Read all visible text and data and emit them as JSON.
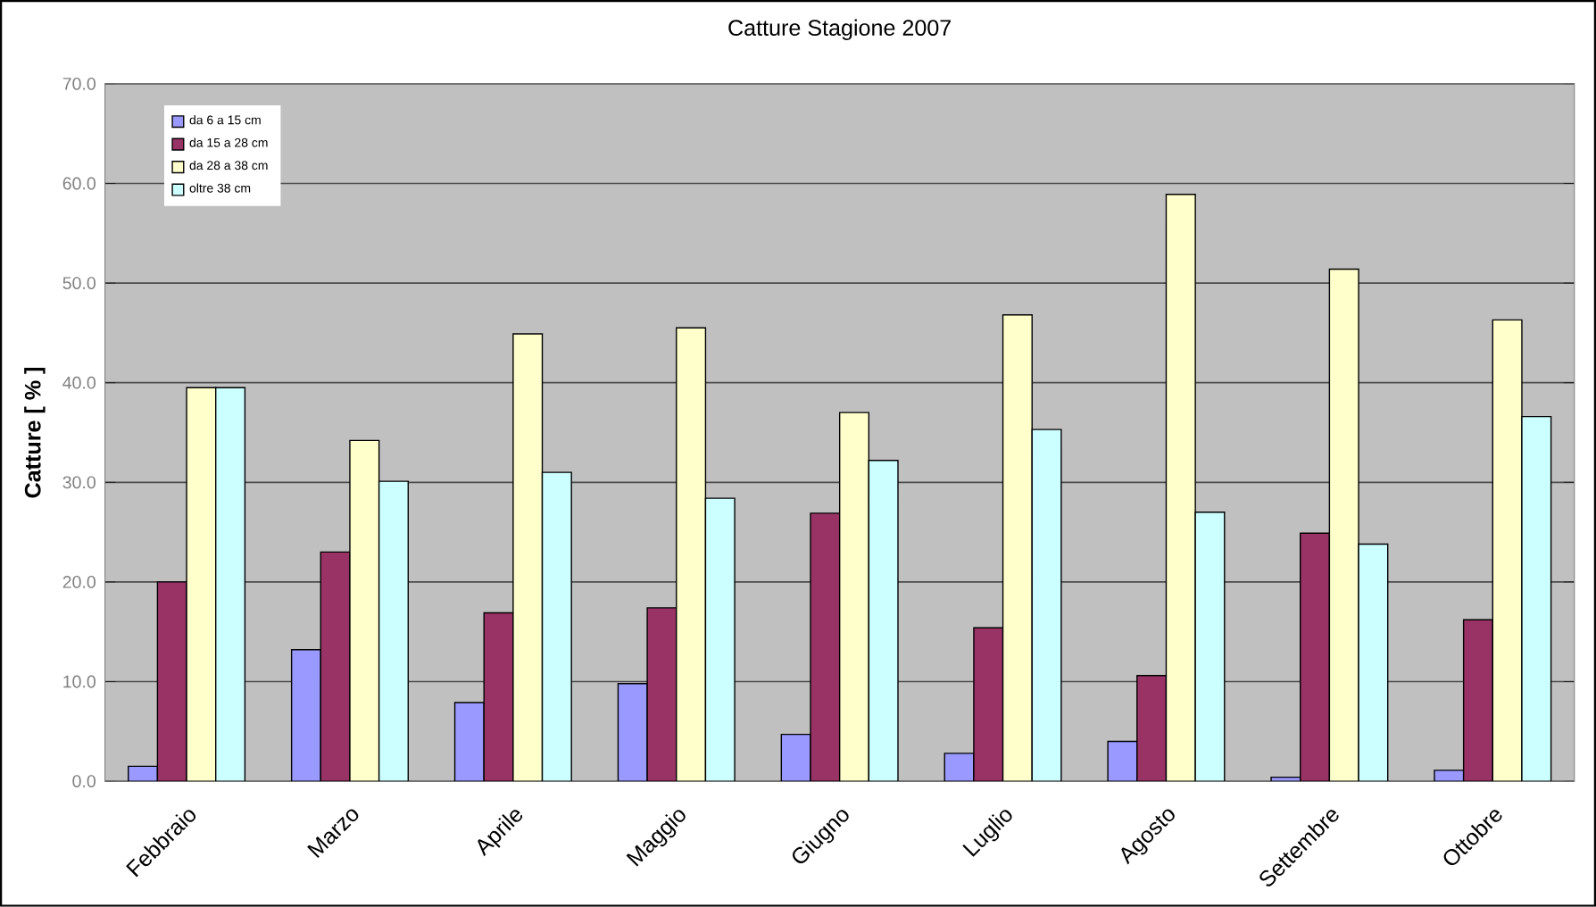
{
  "chart_data": {
    "type": "bar",
    "title": "Catture Stagione 2007",
    "ylabel": "Catture  [ % ]",
    "categories": [
      "Febbraio",
      "Marzo",
      "Aprile",
      "Maggio",
      "Giugno",
      "Luglio",
      "Agosto",
      "Settembre",
      "Ottobre"
    ],
    "series": [
      {
        "name": "da 6 a 15 cm",
        "color": "#9999ff",
        "values": [
          1.5,
          13.2,
          7.9,
          9.8,
          4.7,
          2.8,
          4.0,
          0.4,
          1.1
        ]
      },
      {
        "name": "da 15 a 28 cm",
        "color": "#993366",
        "values": [
          20.0,
          23.0,
          16.9,
          17.4,
          26.9,
          15.4,
          10.6,
          24.9,
          16.2
        ]
      },
      {
        "name": "da 28 a 38 cm",
        "color": "#ffffcc",
        "values": [
          39.5,
          34.2,
          44.9,
          45.5,
          37.0,
          46.8,
          58.9,
          51.4,
          46.3
        ]
      },
      {
        "name": "oltre 38 cm",
        "color": "#ccffff",
        "values": [
          39.5,
          30.1,
          31.0,
          28.4,
          32.2,
          35.3,
          27.0,
          23.8,
          36.6
        ]
      }
    ],
    "ylim": [
      0,
      70
    ],
    "yticks": [
      {
        "value": 0,
        "label": "0.0"
      },
      {
        "value": 10,
        "label": "10.0"
      },
      {
        "value": 20,
        "label": "20.0"
      },
      {
        "value": 30,
        "label": "30.0"
      },
      {
        "value": 40,
        "label": "40.0"
      },
      {
        "value": 50,
        "label": "50.0"
      },
      {
        "value": 60,
        "label": "60.0"
      },
      {
        "value": 70,
        "label": "70.0"
      }
    ],
    "grid": "y",
    "legend": "top left"
  }
}
